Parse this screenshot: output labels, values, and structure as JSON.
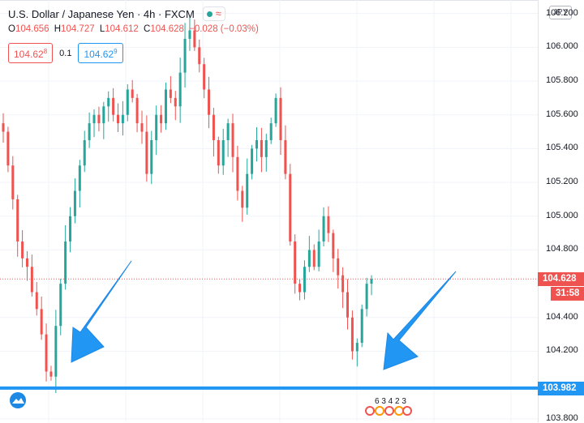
{
  "header": {
    "symbol_title": "U.S. Dollar / Japanese Yen · 4h · FXCM",
    "status_wave": "≈"
  },
  "ohlc": {
    "o_key": "O",
    "o_val": "104.656",
    "h_key": "H",
    "h_val": "104.727",
    "l_key": "L",
    "l_val": "104.612",
    "c_key": "C",
    "c_val": "104.628",
    "change": "−0.028 (−0.03%)"
  },
  "trade": {
    "sell_price": "104.62",
    "sell_sup": "8",
    "spread": "0.1",
    "buy_price": "104.62",
    "buy_sup": "9"
  },
  "price_axis": {
    "currency": "JPY",
    "ticks": [
      "106.200",
      "106.000",
      "105.800",
      "105.600",
      "105.400",
      "105.200",
      "105.000",
      "104.800",
      "104.400",
      "104.200",
      "103.800"
    ],
    "last_price": "104.628",
    "countdown": "31:58",
    "horizontal_line_price": "103.982"
  },
  "events": {
    "labels": "6 3 4 2 3"
  },
  "colors": {
    "up": "#26a69a",
    "down": "#ef5350",
    "accent": "#2196f3",
    "grid": "#f0f3fa"
  },
  "chart_data": {
    "type": "candlestick",
    "ylim": [
      103.78,
      106.28
    ],
    "horizontal_line": 103.982,
    "last_price": 104.628,
    "candles_close_trace": [
      105.5,
      105.3,
      105.1,
      104.85,
      104.75,
      104.7,
      104.55,
      104.45,
      104.3,
      104.08,
      104.05,
      104.35,
      104.6,
      104.85,
      105.0,
      105.15,
      105.3,
      105.45,
      105.55,
      105.6,
      105.55,
      105.65,
      105.7,
      105.6,
      105.55,
      105.6,
      105.75,
      105.7,
      105.55,
      105.5,
      105.25,
      105.45,
      105.6,
      105.55,
      105.75,
      105.7,
      105.65,
      105.85,
      106.05,
      106.1,
      106.0,
      105.9,
      105.75,
      105.6,
      105.45,
      105.3,
      105.45,
      105.55,
      105.35,
      105.15,
      105.05,
      105.25,
      105.4,
      105.45,
      105.35,
      105.45,
      105.55,
      105.7,
      105.45,
      105.25,
      104.85,
      104.6,
      104.55,
      104.7,
      104.8,
      104.7,
      104.85,
      105.0,
      104.9,
      104.75,
      104.65,
      104.55,
      104.4,
      104.2,
      104.25,
      104.45,
      104.6,
      104.628
    ]
  }
}
